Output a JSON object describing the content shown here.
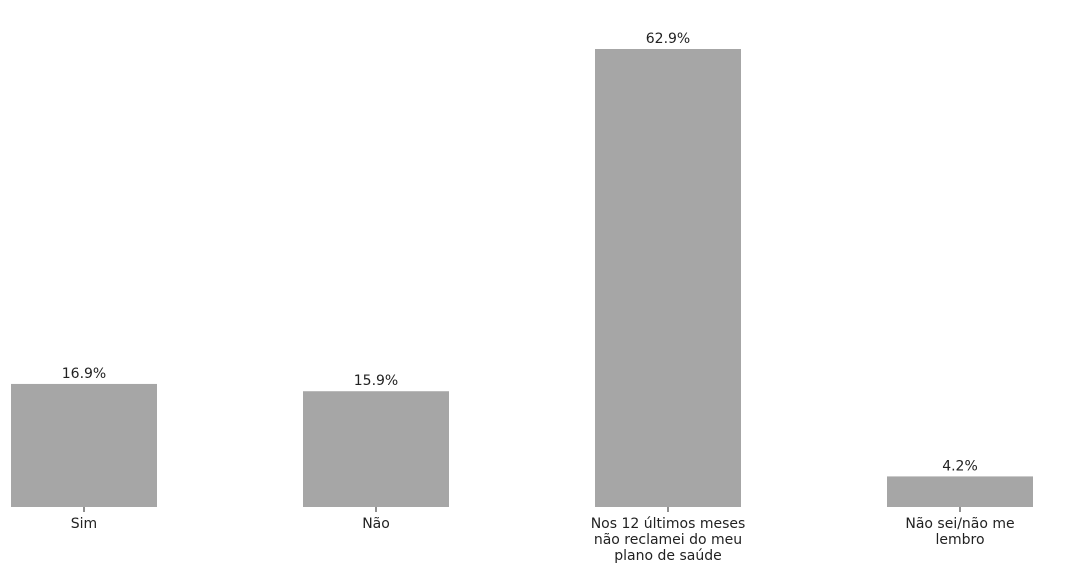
{
  "chart_data": {
    "type": "bar",
    "categories": [
      [
        "Sim"
      ],
      [
        "Não"
      ],
      [
        "Nos 12 últimos meses",
        "não reclamei do meu",
        "plano de saúde"
      ],
      [
        "Não sei/não me",
        "lembro"
      ]
    ],
    "values": [
      16.9,
      15.9,
      62.9,
      4.2
    ],
    "value_labels": [
      "16.9%",
      "15.9%",
      "62.9%",
      "4.2%"
    ],
    "title": "",
    "xlabel": "",
    "ylabel": "",
    "ylim": [
      0,
      62.9
    ],
    "grid": false,
    "legend": "none",
    "colors": {
      "bar": "#a6a6a6",
      "text": "#222222"
    }
  }
}
